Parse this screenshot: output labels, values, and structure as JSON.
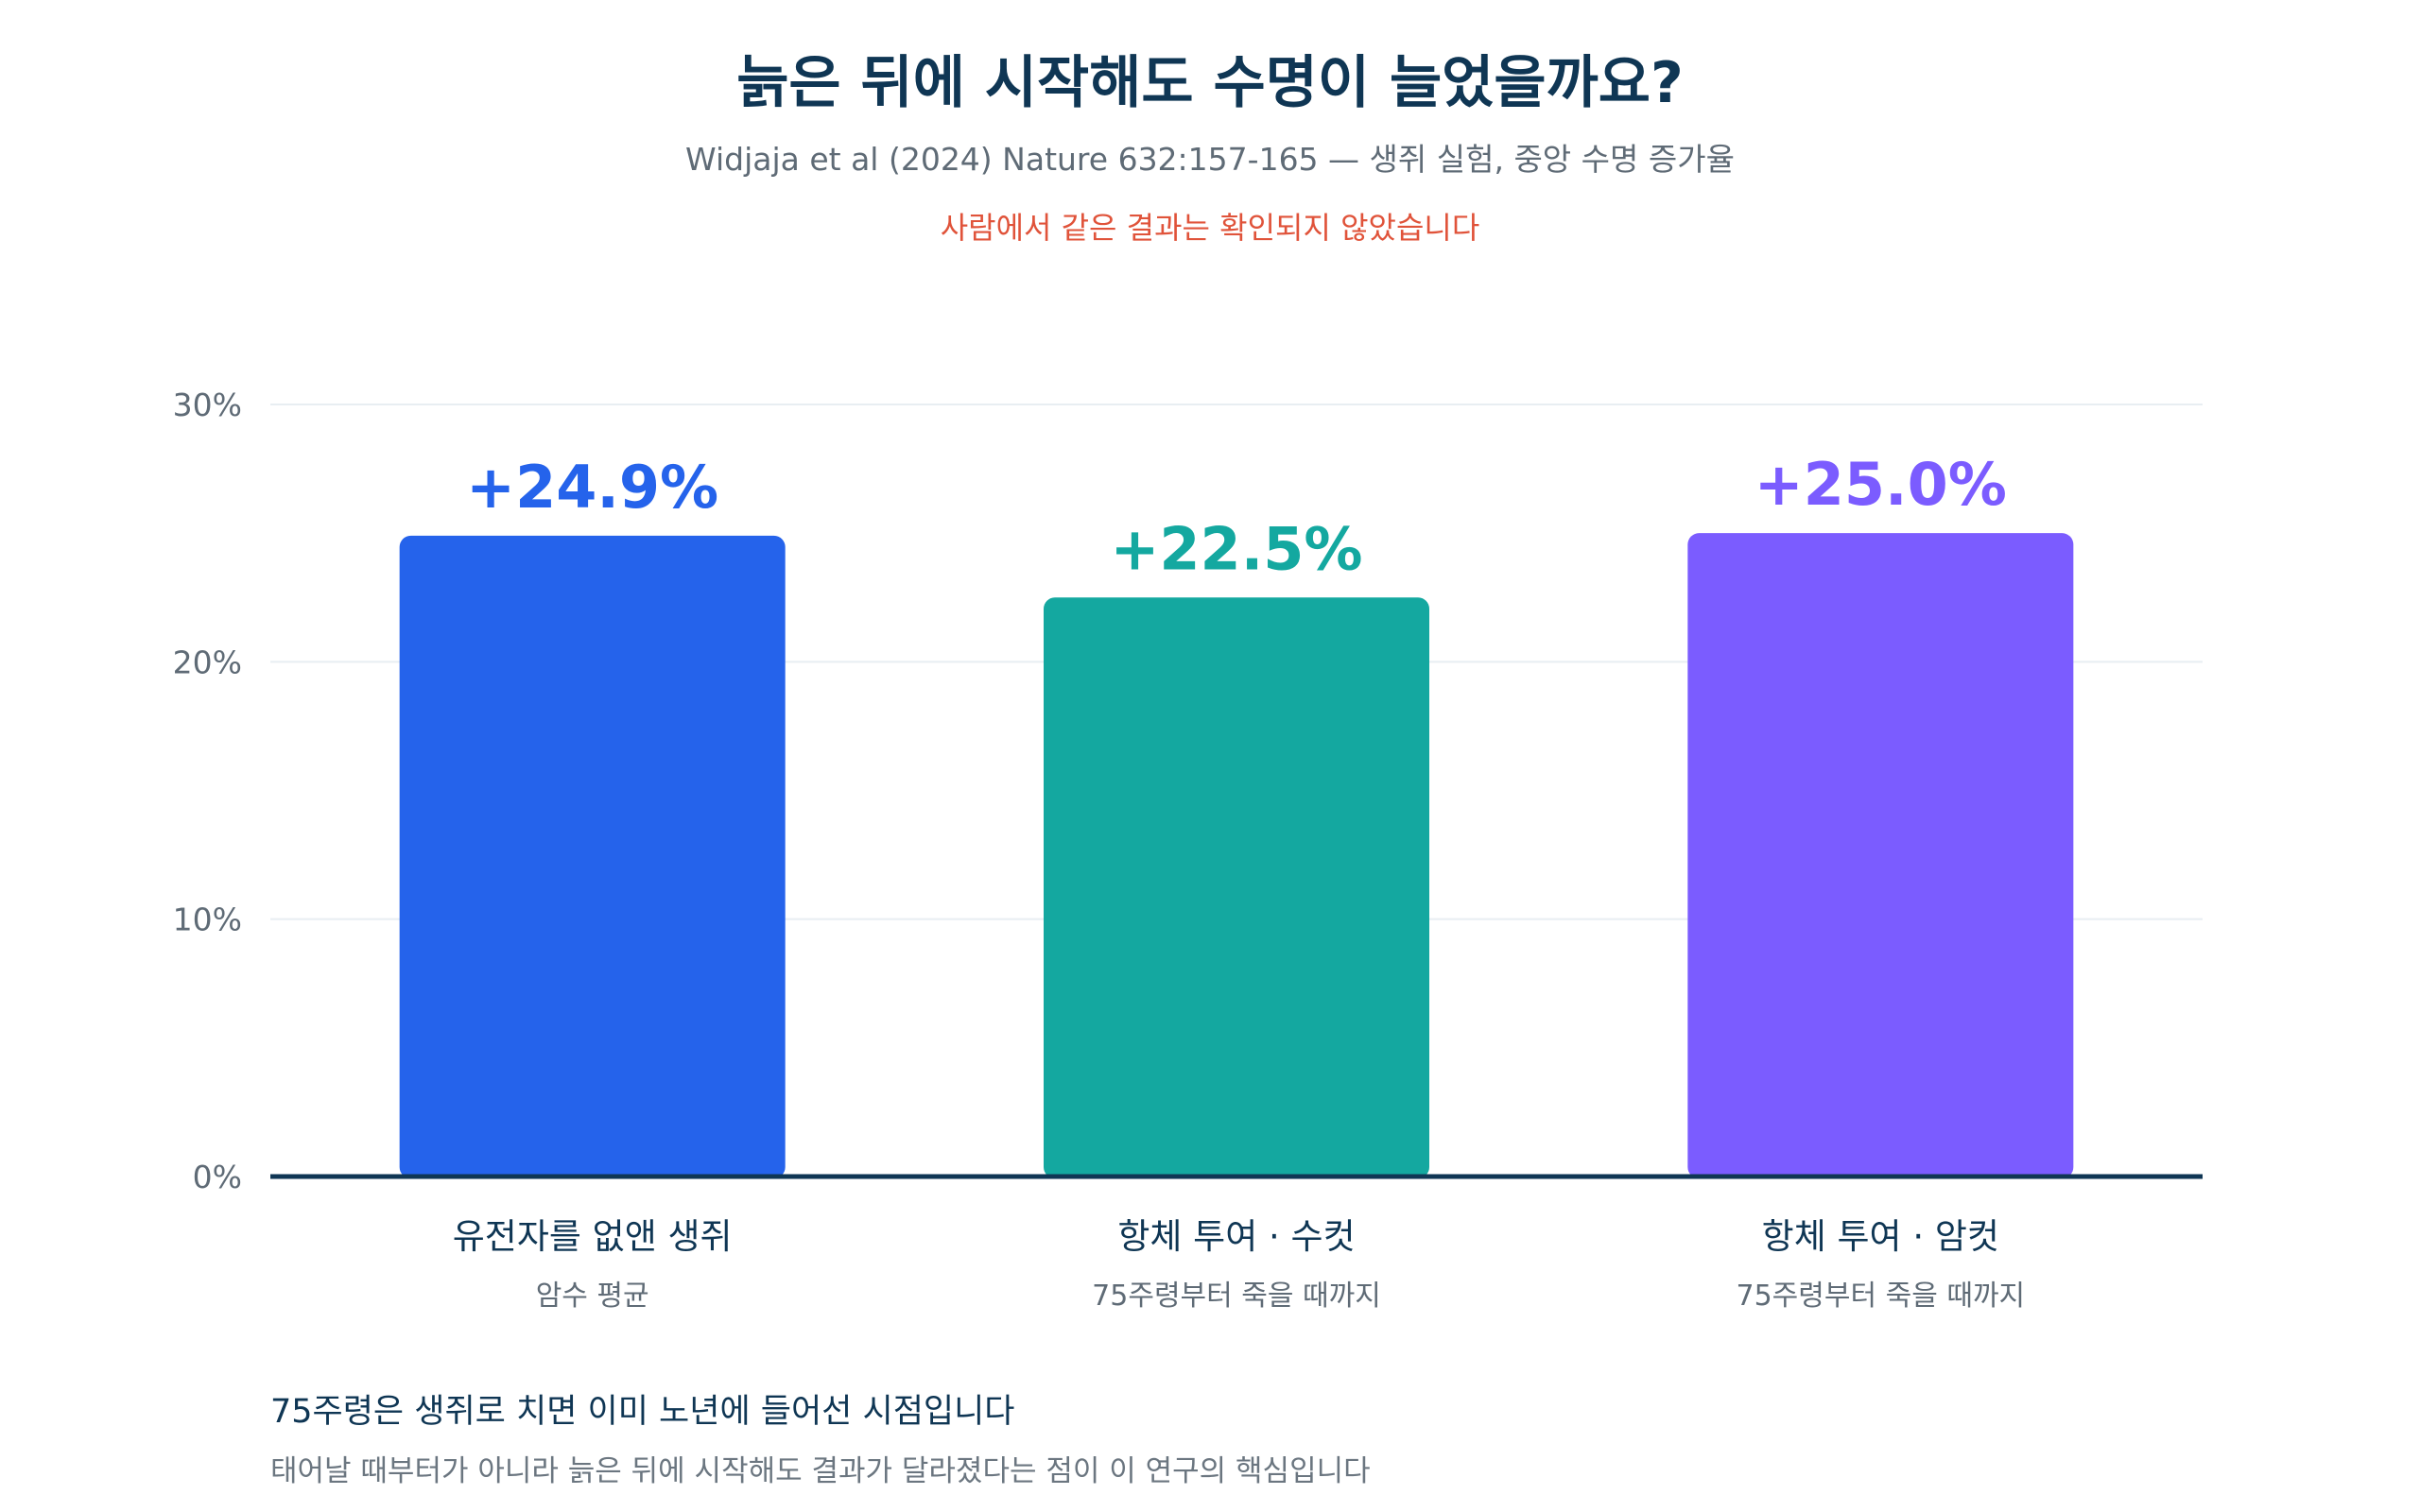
{
  "chart_data": {
    "type": "bar",
    "title": "늙은 뒤에 시작해도 수명이 늘었을까요?",
    "subtitle": "Widjaja et al (2024) Nature 632:157-165 — 생쥐 실험, 중앙 수명 증가율",
    "warning": "사람에서 같은 결과는 확인되지 않았습니다",
    "categories": [
      "유전자를 없앤 생쥐",
      "항체 투여 · 수컷",
      "항체 투여 · 암컷"
    ],
    "category_sublabels": [
      "암수 평균",
      "75주령부터 죽을 때까지",
      "75주령부터 죽을 때까지"
    ],
    "values": [
      24.9,
      22.5,
      25.0
    ],
    "value_labels": [
      "+24.9%",
      "+22.5%",
      "+25.0%"
    ],
    "colors": [
      "#2563eb",
      "#14a8a0",
      "#7b5cff"
    ],
    "ylim": [
      0,
      30
    ],
    "yticks": [
      0,
      10,
      20,
      30
    ],
    "ytick_labels": [
      "0%",
      "10%",
      "20%",
      "30%"
    ],
    "xlabel": "",
    "ylabel": "",
    "grid": true,
    "legend": "none"
  },
  "footnote": {
    "main": "75주령은 생쥐로 치면 이미 노년에 들어선 시점입니다",
    "sub": "태어날 때부터가 아니라 늙은 뒤에 시작해도 결과가 달라졌다는 점이 이 연구의 핵심입니다"
  },
  "colors": {
    "title": "#0f3654",
    "axis": "#0f3654",
    "grid": "#e8eef2",
    "warning": "#e0533a"
  }
}
